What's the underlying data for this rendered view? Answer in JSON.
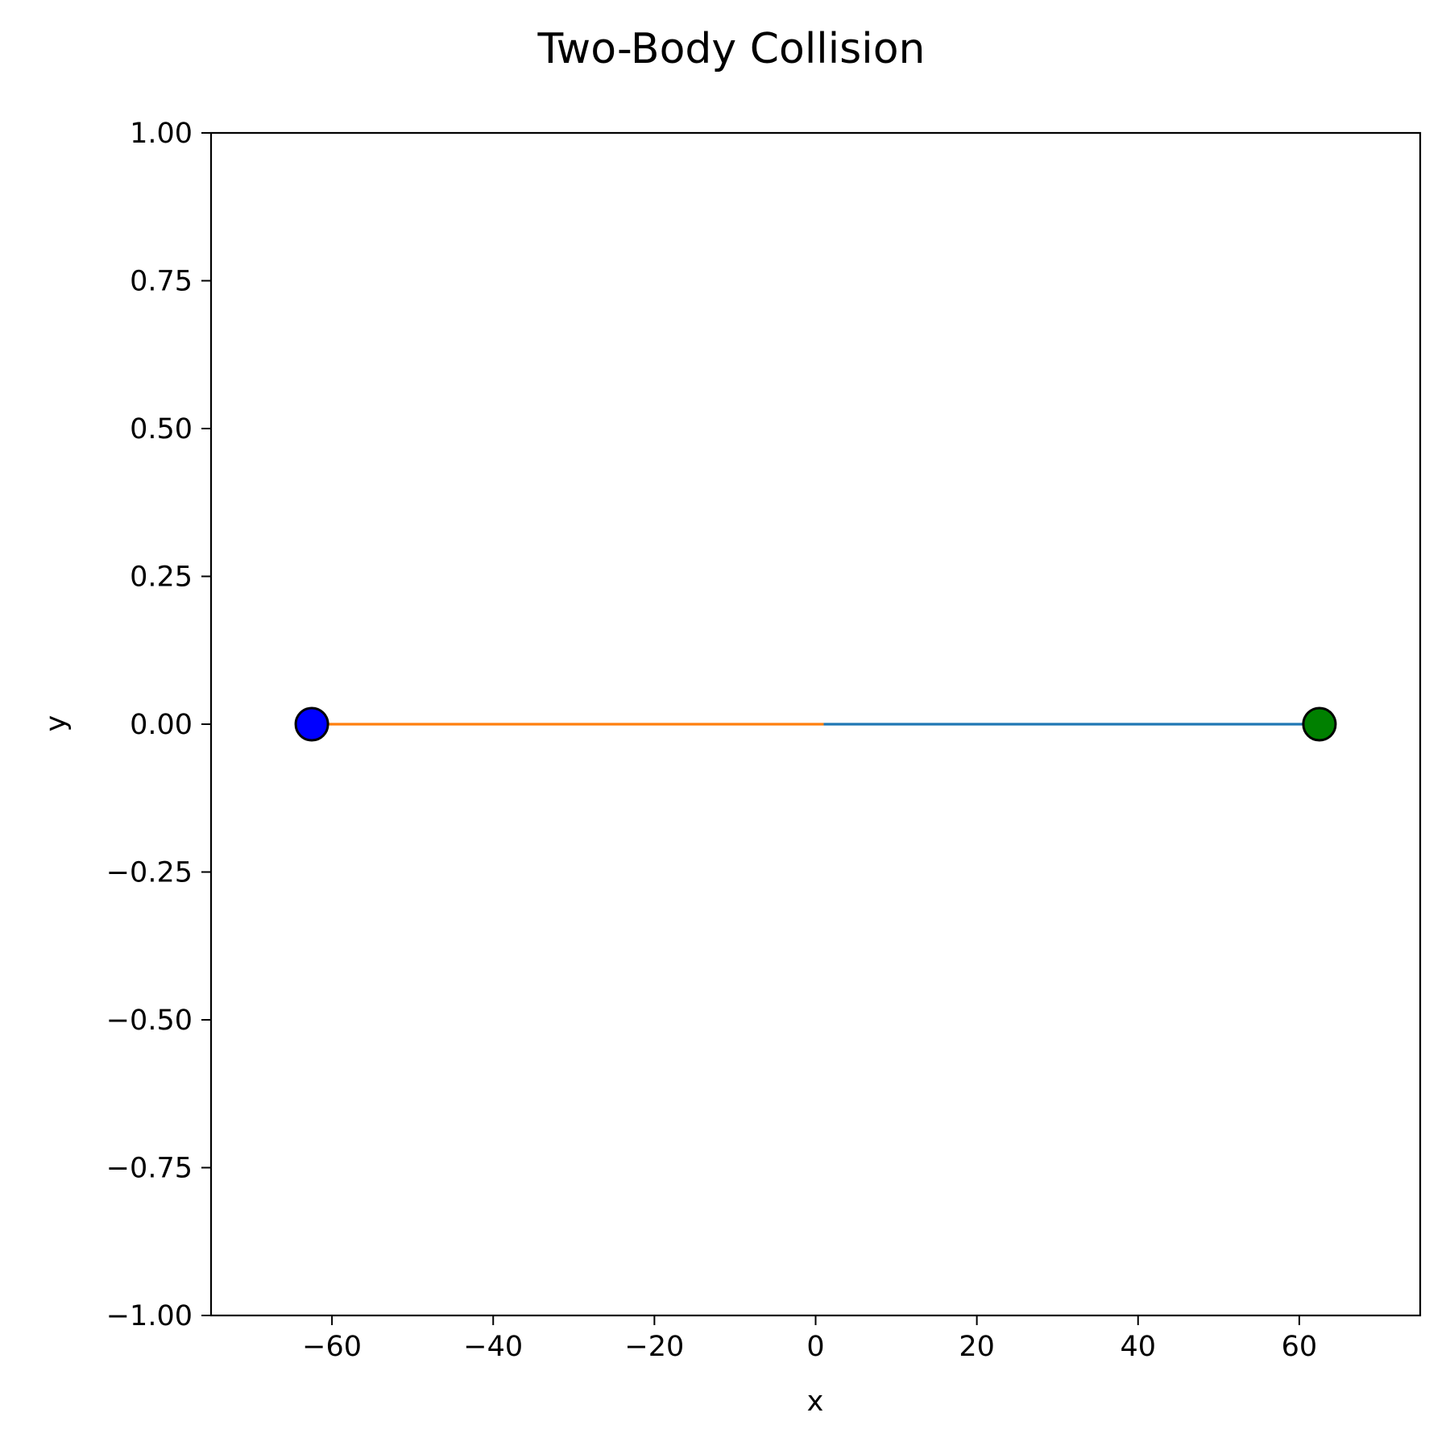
{
  "chart_data": {
    "type": "line",
    "title": "Two-Body Collision",
    "xlabel": "x",
    "ylabel": "y",
    "xlim": [
      -75,
      75
    ],
    "ylim": [
      -1.0,
      1.0
    ],
    "xticks": [
      -60,
      -40,
      -20,
      0,
      20,
      40,
      60
    ],
    "xtick_labels": [
      "−60",
      "−40",
      "−20",
      "0",
      "20",
      "40",
      "60"
    ],
    "yticks": [
      1.0,
      0.75,
      0.5,
      0.25,
      0.0,
      -0.25,
      -0.5,
      -0.75,
      -1.0
    ],
    "ytick_labels": [
      "1.00",
      "0.75",
      "0.50",
      "0.25",
      "0.00",
      "−0.25",
      "−0.50",
      "−0.75",
      "−1.00"
    ],
    "grid": false,
    "series": [
      {
        "color": "#1f77b4",
        "x": [
          62.5,
          1.0
        ],
        "y": [
          0,
          0
        ]
      },
      {
        "color": "#ff7f0e",
        "x": [
          -62.5,
          1.0
        ],
        "y": [
          0,
          0
        ]
      }
    ],
    "bodies": [
      {
        "x": -62.5,
        "y": 0,
        "color": "#0000ff"
      },
      {
        "x": 62.5,
        "y": 0,
        "color": "#008000"
      }
    ]
  }
}
